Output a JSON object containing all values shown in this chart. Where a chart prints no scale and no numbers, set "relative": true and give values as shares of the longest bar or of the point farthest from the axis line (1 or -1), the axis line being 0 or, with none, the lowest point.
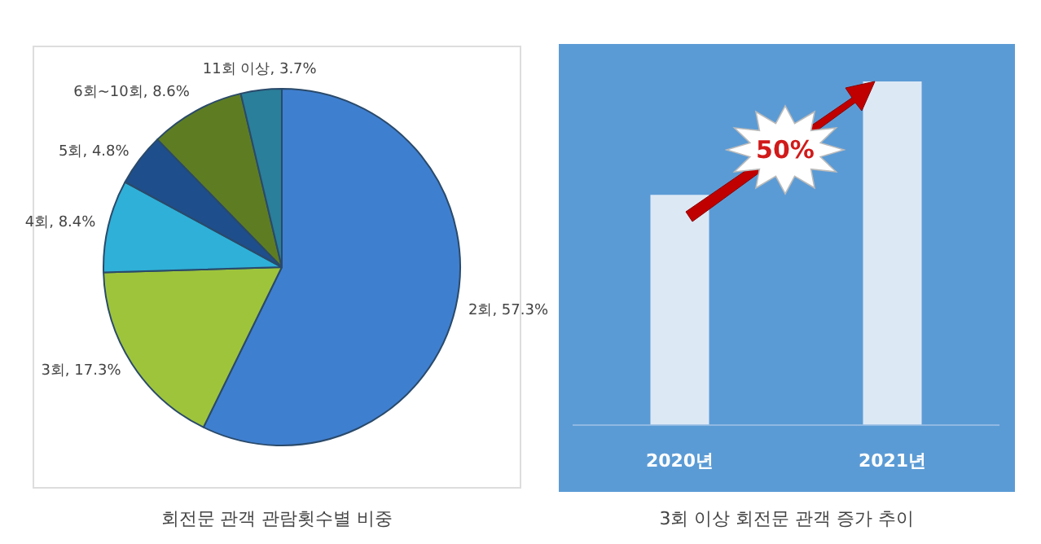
{
  "chart_data": [
    {
      "type": "pie",
      "title": "회전문 관객 관람횟수별 비중",
      "categories": [
        "2회",
        "3회",
        "4회",
        "5회",
        "6회~10회",
        "11회 이상"
      ],
      "values": [
        57.3,
        17.3,
        8.4,
        4.8,
        8.6,
        3.7
      ],
      "value_labels": [
        "57.3%",
        "17.3%",
        "8.4%",
        "4.8%",
        "8.6%",
        "3.7%"
      ],
      "colors": [
        "#3f7fd0",
        "#9ec43c",
        "#2fb0d8",
        "#1f4e8c",
        "#5e7d23",
        "#2a7f9a"
      ]
    },
    {
      "type": "bar",
      "title": "3회 이상 회전문 관객 증가 추이",
      "categories": [
        "2020년",
        "2021년"
      ],
      "values": [
        0.67,
        1
      ],
      "relative": true,
      "color": "#dde8f5",
      "annotations": [
        "50%"
      ]
    }
  ]
}
